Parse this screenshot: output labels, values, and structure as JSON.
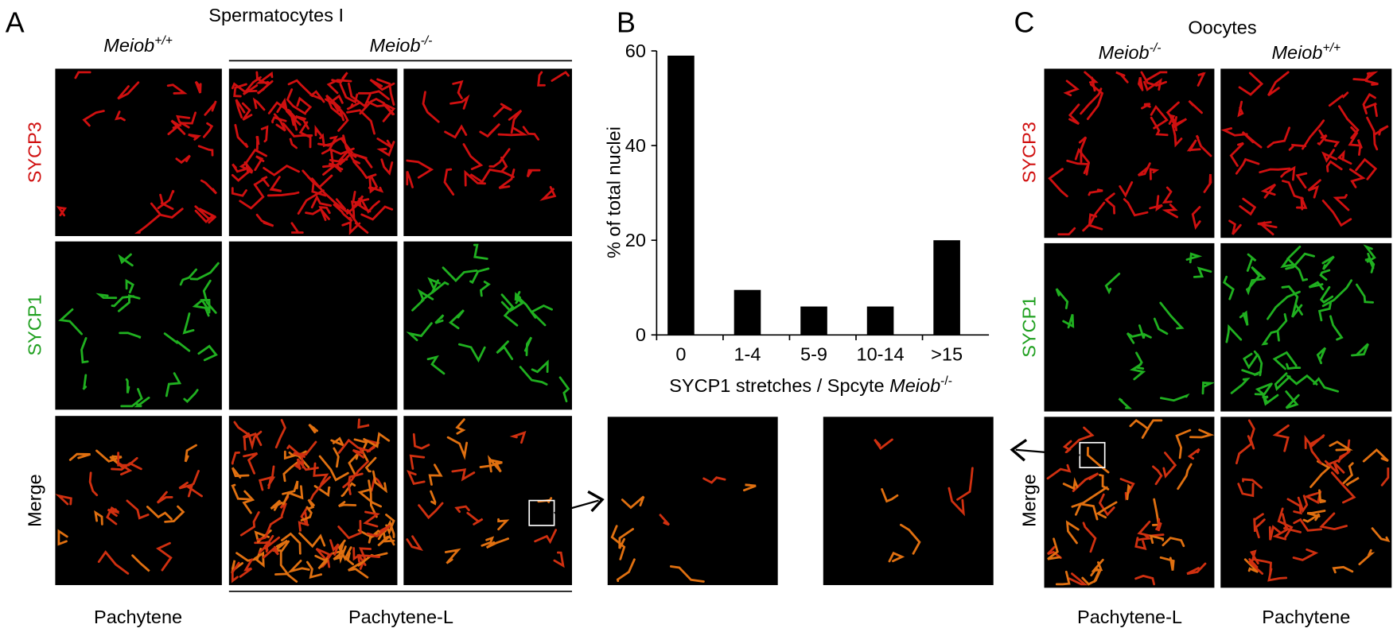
{
  "panels": {
    "A": {
      "letter": "A",
      "title": "Spermatocytes I",
      "rows": [
        "SYCP3",
        "SYCP1",
        "Merge"
      ],
      "stage_left": "Pachytene",
      "stage_right": "Pachytene-L"
    },
    "B": {
      "letter": "B"
    },
    "C": {
      "letter": "C",
      "title": "Oocytes",
      "rows": [
        "SYCP3",
        "SYCP1",
        "Merge"
      ],
      "stage_left": "Pachytene-L",
      "stage_right": "Pachytene"
    }
  },
  "genotypes": {
    "wild_type": {
      "gene": "Meiob",
      "superscript": "+/+"
    },
    "knockout": {
      "gene": "Meiob",
      "superscript": "-/-"
    }
  },
  "chart_data": {
    "type": "bar",
    "y_label": "% of total nuclei",
    "x_label": {
      "text": "SYCP1 stretches / Spcyte ",
      "gene": "Meiob",
      "superscript": "-/-"
    },
    "categories": [
      "0",
      "1-4",
      "5-9",
      "10-14",
      ">15"
    ],
    "values": [
      59,
      9.5,
      6,
      6,
      20
    ],
    "color": "#000000",
    "ylim": [
      0,
      60
    ],
    "yticks": [
      0,
      20,
      40,
      60
    ],
    "grid": false
  }
}
